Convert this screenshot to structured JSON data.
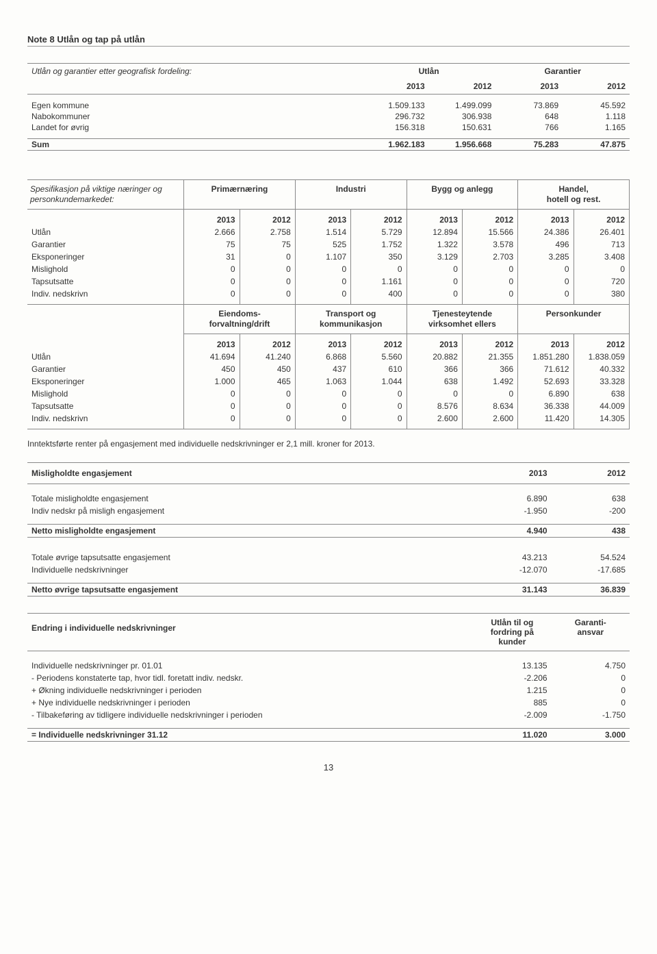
{
  "title": "Note 8 Utlån og tap på utlån",
  "t1": {
    "caption": "Utlån og garantier etter geografisk fordeling:",
    "group_headers": [
      "Utlån",
      "Garantier"
    ],
    "year_cols": [
      "2013",
      "2012",
      "2013",
      "2012"
    ],
    "rows": [
      {
        "label": "Egen kommune",
        "v": [
          "1.509.133",
          "1.499.099",
          "73.869",
          "45.592"
        ]
      },
      {
        "label": "Nabokommuner",
        "v": [
          "296.732",
          "306.938",
          "648",
          "1.118"
        ]
      },
      {
        "label": "Landet for øvrig",
        "v": [
          "156.318",
          "150.631",
          "766",
          "1.165"
        ]
      }
    ],
    "sum_label": "Sum",
    "sum": [
      "1.962.183",
      "1.956.668",
      "75.283",
      "47.875"
    ]
  },
  "t2": {
    "row_header_a": "Spesifikasjon på viktige næringer og personkundemarkedet:",
    "groups_a": [
      "Primærnæring",
      "Industri",
      "Bygg og anlegg",
      "Handel,\nhotell og rest."
    ],
    "groups_b": [
      "Eiendoms-\nforvaltning/drift",
      "Transport og\nkommunikasjon",
      "Tjenesteytende\nvirksomhet ellers",
      "Personkunder"
    ],
    "rows_labels": [
      "Utlån",
      "Garantier",
      "Eksponeringer",
      "Mislighold",
      "Tapsutsatte",
      "Indiv. nedskrivn"
    ],
    "block_a": [
      [
        "2.666",
        "2.758",
        "1.514",
        "5.729",
        "12.894",
        "15.566",
        "24.386",
        "26.401"
      ],
      [
        "75",
        "75",
        "525",
        "1.752",
        "1.322",
        "3.578",
        "496",
        "713"
      ],
      [
        "31",
        "0",
        "1.107",
        "350",
        "3.129",
        "2.703",
        "3.285",
        "3.408"
      ],
      [
        "0",
        "0",
        "0",
        "0",
        "0",
        "0",
        "0",
        "0"
      ],
      [
        "0",
        "0",
        "0",
        "1.161",
        "0",
        "0",
        "0",
        "720"
      ],
      [
        "0",
        "0",
        "0",
        "400",
        "0",
        "0",
        "0",
        "380"
      ]
    ],
    "block_b": [
      [
        "41.694",
        "41.240",
        "6.868",
        "5.560",
        "20.882",
        "21.355",
        "1.851.280",
        "1.838.059"
      ],
      [
        "450",
        "450",
        "437",
        "610",
        "366",
        "366",
        "71.612",
        "40.332"
      ],
      [
        "1.000",
        "465",
        "1.063",
        "1.044",
        "638",
        "1.492",
        "52.693",
        "33.328"
      ],
      [
        "0",
        "0",
        "0",
        "0",
        "0",
        "0",
        "6.890",
        "638"
      ],
      [
        "0",
        "0",
        "0",
        "0",
        "8.576",
        "8.634",
        "36.338",
        "44.009"
      ],
      [
        "0",
        "0",
        "0",
        "0",
        "2.600",
        "2.600",
        "11.420",
        "14.305"
      ]
    ]
  },
  "note_text": "Inntektsførte renter på engasjement med individuelle nedskrivninger er 2,1 mill. kroner for 2013.",
  "t3": {
    "header": "Misligholdte engasjement",
    "years": [
      "2013",
      "2012"
    ],
    "rows": [
      {
        "label": "Totale misligholdte engasjement",
        "v": [
          "6.890",
          "638"
        ]
      },
      {
        "label": "Indiv nedskr på misligh engasjement",
        "v": [
          "-1.950",
          "-200"
        ]
      }
    ],
    "sum_label": "Netto misligholdte engasjement",
    "sum": [
      "4.940",
      "438"
    ]
  },
  "t4": {
    "rows": [
      {
        "label": "Totale øvrige tapsutsatte engasjement",
        "v": [
          "43.213",
          "54.524"
        ]
      },
      {
        "label": "Individuelle nedskrivninger",
        "v": [
          "-12.070",
          "-17.685"
        ]
      }
    ],
    "sum_label": "Netto øvrige tapsutsatte engasjement",
    "sum": [
      "31.143",
      "36.839"
    ]
  },
  "t5": {
    "header": "Endring i individuelle nedskrivninger",
    "col_headers": [
      "Utlån til og\nfordring på\nkunder",
      "Garanti-\nansvar"
    ],
    "rows": [
      {
        "label": "Individuelle nedskrivninger pr. 01.01",
        "v": [
          "13.135",
          "4.750"
        ]
      },
      {
        "label": "- Periodens konstaterte tap, hvor tidl. foretatt indiv. nedskr.",
        "v": [
          "-2.206",
          "0"
        ]
      },
      {
        "label": "+ Økning individuelle nedskrivninger i perioden",
        "v": [
          "1.215",
          "0"
        ]
      },
      {
        "label": "+ Nye individuelle nedskrivninger i perioden",
        "v": [
          "885",
          "0"
        ]
      },
      {
        "label": "- Tilbakeføring av tidligere individuelle nedskrivninger i perioden",
        "v": [
          "-2.009",
          "-1.750"
        ]
      }
    ],
    "sum_label": "= Individuelle nedskrivninger 31.12",
    "sum": [
      "11.020",
      "3.000"
    ]
  },
  "page_number": "13"
}
